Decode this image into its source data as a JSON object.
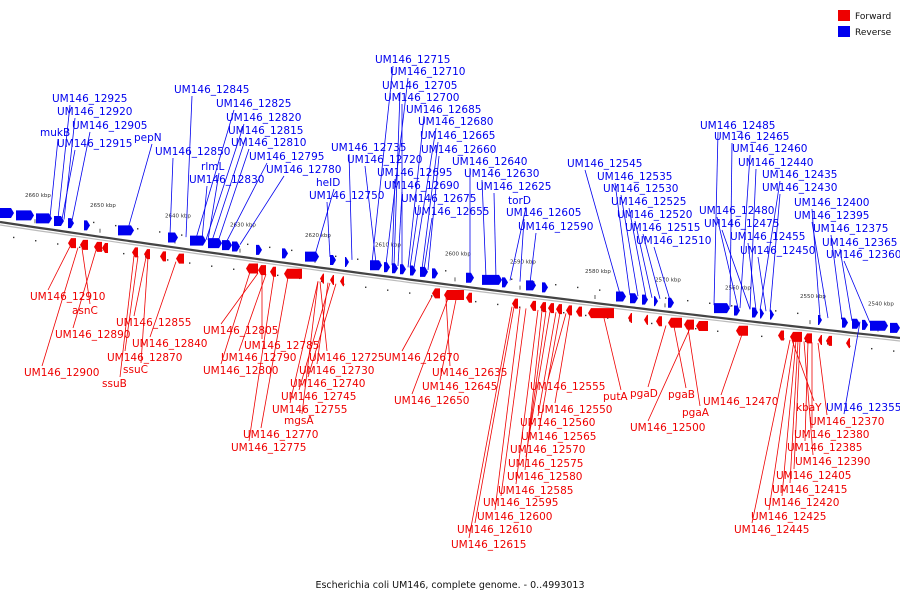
{
  "caption": "Escherichia coli UM146, complete genome. - 0..4993013",
  "legend": [
    {
      "label": "Forward",
      "color": "#ee0000"
    },
    {
      "label": "Reverse",
      "color": "#0000ee"
    }
  ],
  "ticks": [
    "2660 kbp",
    "2650 kbp",
    "2640 kbp",
    "2630 kbp",
    "2620 kbp",
    "2610 kbp",
    "2600 kbp",
    "2590 kbp",
    "2580 kbp",
    "2570 kbp",
    "2560 kbp",
    "2550 kbp",
    "2540 kbp"
  ],
  "reverse_labels": [
    "UM146_12925",
    "UM146_12920",
    "UM146_12905",
    "mukB",
    "UM146_12915",
    "pepN",
    "UM146_12845",
    "UM146_12825",
    "UM146_12820",
    "UM146_12815",
    "UM146_12810",
    "UM146_12850",
    "rlmL",
    "UM146_12795",
    "UM146_12830",
    "UM146_12780",
    "heID",
    "UM146_12750",
    "UM146_12715",
    "UM146_12710",
    "UM146_12705",
    "UM146_12700",
    "UM146_12685",
    "UM146_12680",
    "UM146_12665",
    "UM146_12660",
    "UM146_12735",
    "UM146_12720",
    "UM146_12640",
    "UM146_12695",
    "UM146_12630",
    "UM146_12690",
    "UM146_12625",
    "UM146_12675",
    "torD",
    "UM146_12655",
    "UM146_12605",
    "UM146_12590",
    "UM146_12545",
    "UM146_12535",
    "UM146_12530",
    "UM146_12525",
    "UM146_12520",
    "UM146_12515",
    "UM146_12510",
    "UM146_12485",
    "UM146_12465",
    "UM146_12460",
    "UM146_12440",
    "UM146_12435",
    "UM146_12430",
    "UM146_12400",
    "UM146_12480",
    "UM146_12395",
    "UM146_12475",
    "UM146_12375",
    "UM146_12455",
    "UM146_12365",
    "UM146_12450",
    "UM146_12360",
    "UM146_12355"
  ],
  "forward_labels": [
    "UM146_12910",
    "asnC",
    "UM146_12890",
    "UM146_12855",
    "UM146_12840",
    "UM146_12870",
    "UM146_12900",
    "ssuC",
    "ssuB",
    "UM146_12805",
    "UM146_12785",
    "UM146_12790",
    "UM146_12725",
    "UM146_12800",
    "UM146_12730",
    "UM146_12740",
    "UM146_12745",
    "UM146_12755",
    "mgsA",
    "UM146_12770",
    "UM146_12775",
    "UM146_12670",
    "UM146_12635",
    "UM146_12645",
    "UM146_12650",
    "UM146_12555",
    "UM146_12550",
    "UM146_12560",
    "UM146_12565",
    "UM146_12570",
    "UM146_12575",
    "UM146_12580",
    "UM146_12585",
    "UM146_12595",
    "UM146_12600",
    "UM146_12610",
    "UM146_12615",
    "putA",
    "pgaD",
    "pgaB",
    "pgaA",
    "UM146_12500",
    "UM146_12470",
    "kbaY",
    "UM146_12370",
    "UM146_12380",
    "UM146_12385",
    "UM146_12390",
    "UM146_12405",
    "UM146_12415",
    "UM146_12420",
    "UM146_12425",
    "UM146_12445"
  ]
}
